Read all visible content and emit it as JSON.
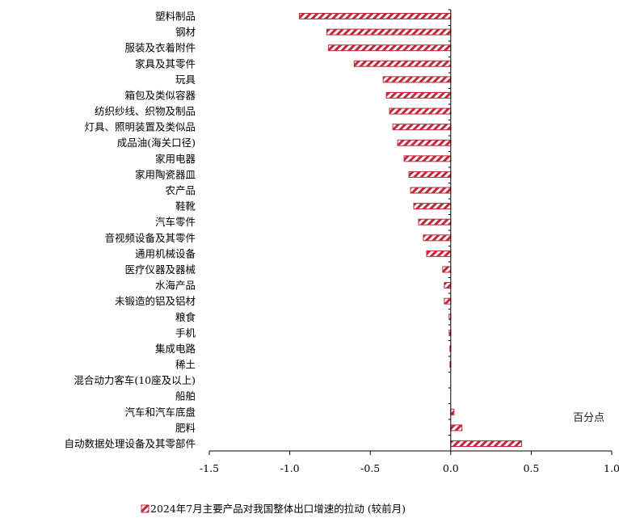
{
  "chart_data": {
    "type": "bar",
    "orientation": "horizontal",
    "categories": [
      "塑料制品",
      "钢材",
      "服装及衣着附件",
      "家具及其零件",
      "玩具",
      "箱包及类似容器",
      "纺织纱线、织物及制品",
      "灯具、照明装置及类似品",
      "成品油(海关口径)",
      "家用电器",
      "家用陶瓷器皿",
      "农产品",
      "鞋靴",
      "汽车零件",
      "音视频设备及其零件",
      "通用机械设备",
      "医疗仪器及器械",
      "水海产品",
      "未锻造的铝及铝材",
      "粮食",
      "手机",
      "集成电路",
      "稀土",
      "混合动力客车(10座及以上)",
      "船舶",
      "汽车和汽车底盘",
      "肥料",
      "自动数据处理设备及其零部件"
    ],
    "series": [
      {
        "name": "2024年7月主要产品对我国整体出口增速的拉动 (较前月)",
        "color": "#c0283a",
        "pattern": "diagonal-hatch",
        "values": [
          -0.94,
          -0.77,
          -0.76,
          -0.6,
          -0.42,
          -0.4,
          -0.38,
          -0.36,
          -0.33,
          -0.29,
          -0.26,
          -0.25,
          -0.23,
          -0.2,
          -0.17,
          -0.15,
          -0.05,
          -0.04,
          -0.04,
          -0.01,
          -0.01,
          -0.005,
          -0.005,
          0.0,
          0.0,
          0.02,
          0.07,
          0.44
        ]
      }
    ],
    "xlim": [
      -1.5,
      1.0
    ],
    "xticks": [
      -1.5,
      -1.0,
      -0.5,
      0.0,
      0.5,
      1.0
    ],
    "xtick_labels": [
      "-1.5",
      "-1.0",
      "-0.5",
      "0.0",
      "0.5",
      "1.0"
    ],
    "unit_label": "百分点",
    "grid": false,
    "legend_position": "bottom",
    "legend_label": "2024年7月主要产品对我国整体出口增速的拉动 (较前月)"
  }
}
